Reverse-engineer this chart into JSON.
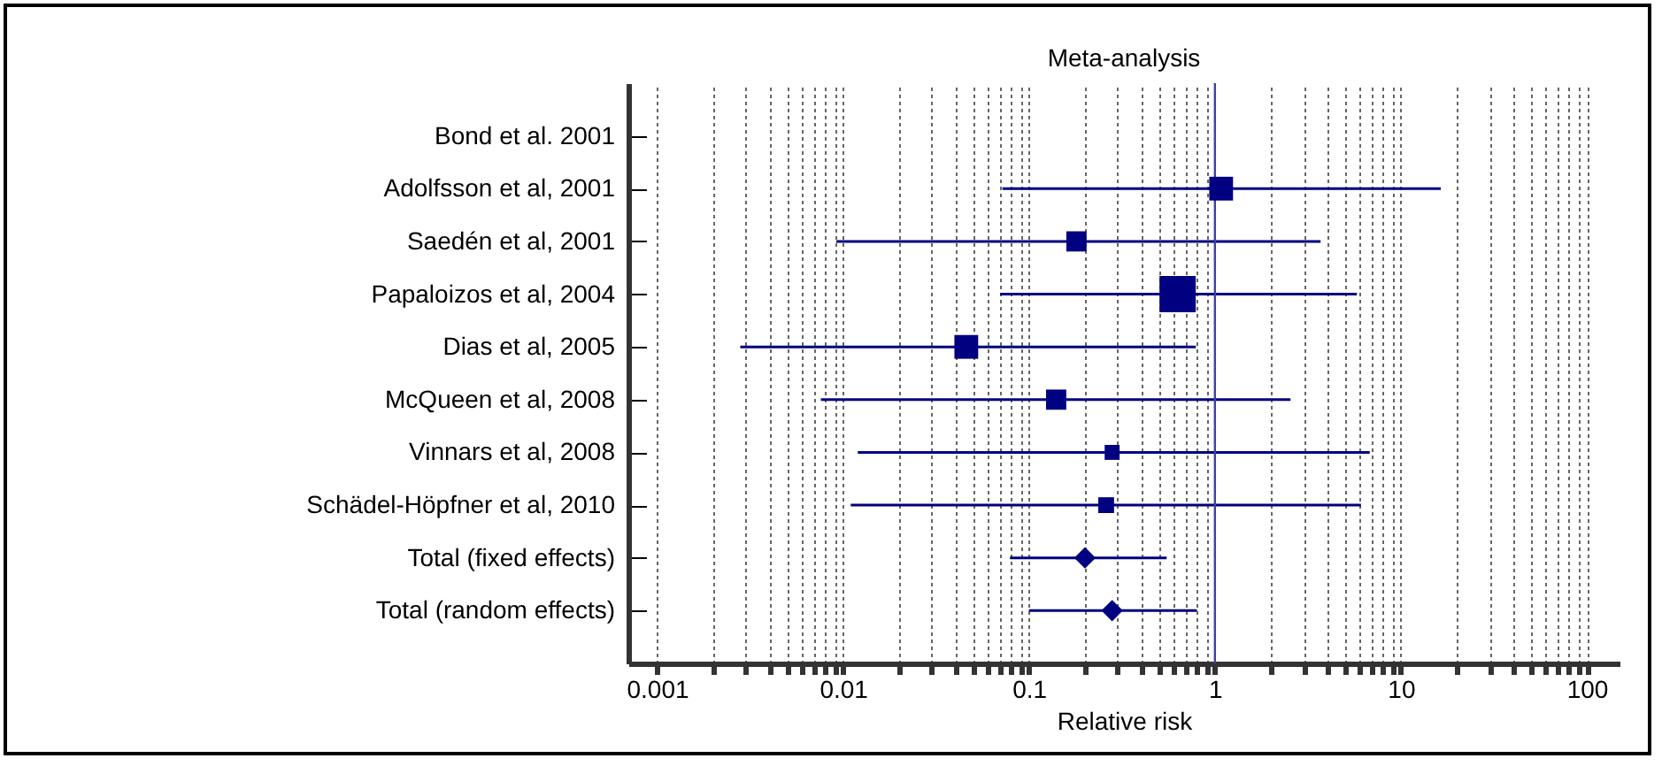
{
  "chart_data": {
    "type": "scatter",
    "orientation": "horizontal",
    "title": "Meta-analysis",
    "xlabel": "Relative risk",
    "categories": [
      "Bond et al. 2001",
      "Adolfsson et al, 2001",
      "Saedén et al, 2001",
      "Papaloizos et al, 2004",
      "Dias et al, 2005",
      "McQueen et al, 2008",
      "Vinnars et al, 2008",
      "Schädel-Höpfner et al, 2010",
      "Total (fixed effects)",
      "Total (random effects)"
    ],
    "series": [
      {
        "color": "#000080",
        "marker": "square",
        "values": [
          null,
          1.08,
          0.18,
          0.63,
          0.046,
          0.14,
          0.28,
          0.26,
          null,
          null
        ],
        "errors": [
          null,
          [
            0.072,
            16.4
          ],
          [
            0.0092,
            3.7
          ],
          [
            0.07,
            5.8
          ],
          [
            0.0028,
            0.79
          ],
          [
            0.0076,
            2.55
          ],
          [
            0.012,
            6.8
          ],
          [
            0.011,
            6.1
          ],
          null,
          null
        ],
        "sizes": [
          null,
          0.43,
          0.31,
          1,
          0.43,
          0.31,
          0.17,
          0.19,
          null,
          null
        ]
      },
      {
        "color": "#000080",
        "marker": "diamond",
        "values": [
          null,
          null,
          null,
          null,
          null,
          null,
          null,
          null,
          0.2,
          0.28
        ],
        "errors": [
          null,
          null,
          null,
          null,
          null,
          null,
          null,
          null,
          [
            0.079,
            0.55
          ],
          [
            0.1,
            0.8
          ]
        ]
      }
    ],
    "log": "x",
    "xlim": [
      0.0007,
      150
    ],
    "xticks": [
      0.001,
      {
        "value": 0.002,
        "label": null
      },
      {
        "value": 0.003,
        "label": null
      },
      {
        "value": 0.004,
        "label": null
      },
      {
        "value": 0.005,
        "label": null
      },
      {
        "value": 0.006,
        "label": null
      },
      {
        "value": 0.007,
        "label": null
      },
      {
        "value": 0.008,
        "label": null
      },
      {
        "value": 0.009,
        "label": null
      },
      0.01,
      {
        "value": 0.02,
        "label": null
      },
      {
        "value": 0.03,
        "label": null
      },
      {
        "value": 0.04,
        "label": null
      },
      {
        "value": 0.05,
        "label": null
      },
      {
        "value": 0.06,
        "label": null
      },
      {
        "value": 0.07,
        "label": null
      },
      {
        "value": 0.08,
        "label": null
      },
      {
        "value": 0.09,
        "label": null
      },
      0.1,
      {
        "value": 0.2,
        "label": null
      },
      {
        "value": 0.3,
        "label": null
      },
      {
        "value": 0.4,
        "label": null
      },
      {
        "value": 0.5,
        "label": null
      },
      {
        "value": 0.6,
        "label": null
      },
      {
        "value": 0.7,
        "label": null
      },
      {
        "value": 0.8,
        "label": null
      },
      {
        "value": 0.9,
        "label": null
      },
      1,
      {
        "value": 2,
        "label": null
      },
      {
        "value": 3,
        "label": null
      },
      {
        "value": 4,
        "label": null
      },
      {
        "value": 5,
        "label": null
      },
      {
        "value": 6,
        "label": null
      },
      {
        "value": 7,
        "label": null
      },
      {
        "value": 8,
        "label": null
      },
      {
        "value": 9,
        "label": null
      },
      10,
      {
        "value": 20,
        "label": null
      },
      {
        "value": 30,
        "label": null
      },
      {
        "value": 40,
        "label": null
      },
      {
        "value": 50,
        "label": null
      },
      {
        "value": 60,
        "label": null
      },
      {
        "value": 70,
        "label": null
      },
      {
        "value": 80,
        "label": null
      },
      {
        "value": 90,
        "label": null
      },
      100
    ],
    "grid": "x",
    "legend": false,
    "ref_lines": [
      {
        "axis": "x",
        "value": 1,
        "color": "#4040a0"
      }
    ]
  }
}
